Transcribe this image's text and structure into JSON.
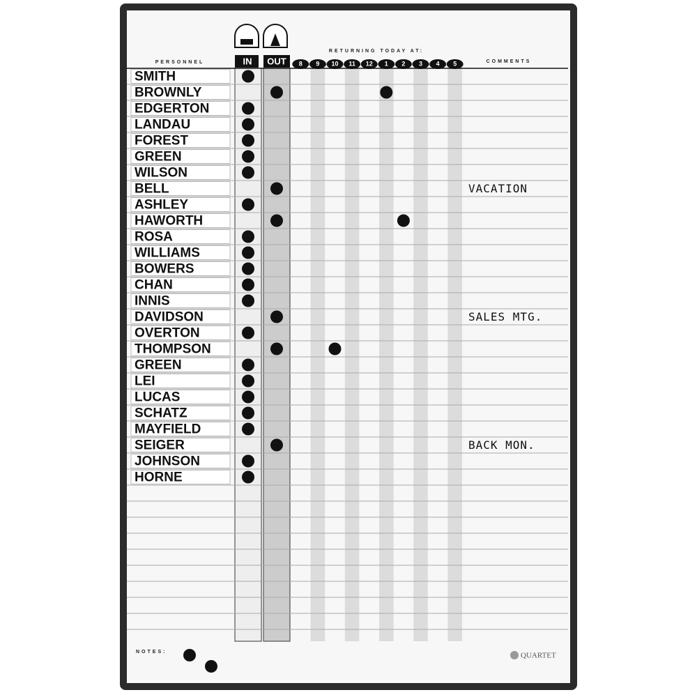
{
  "headers": {
    "personnel": "PERSONNEL",
    "in": "IN",
    "out": "OUT",
    "returning": "RETURNING TODAY AT:",
    "comments": "COMMENTS"
  },
  "times": [
    "8",
    "9",
    "10",
    "11",
    "12",
    "1",
    "2",
    "3",
    "4",
    "5"
  ],
  "rows": [
    {
      "name": "SMITH",
      "status": "in"
    },
    {
      "name": "BROWNLY",
      "status": "out",
      "returning": "1"
    },
    {
      "name": "EDGERTON",
      "status": "in"
    },
    {
      "name": "LANDAU",
      "status": "in"
    },
    {
      "name": "FOREST",
      "status": "in"
    },
    {
      "name": "GREEN",
      "status": "in"
    },
    {
      "name": "WILSON",
      "status": "in"
    },
    {
      "name": "BELL",
      "status": "out",
      "comment": "VACATION"
    },
    {
      "name": "ASHLEY",
      "status": "in"
    },
    {
      "name": "HAWORTH",
      "status": "out",
      "returning": "2"
    },
    {
      "name": "ROSA",
      "status": "in"
    },
    {
      "name": "WILLIAMS",
      "status": "in"
    },
    {
      "name": "BOWERS",
      "status": "in"
    },
    {
      "name": "CHAN",
      "status": "in"
    },
    {
      "name": "INNIS",
      "status": "in"
    },
    {
      "name": "DAVIDSON",
      "status": "out",
      "comment": "SALES MTG."
    },
    {
      "name": "OVERTON",
      "status": "in"
    },
    {
      "name": "THOMPSON",
      "status": "out",
      "returning": "10"
    },
    {
      "name": "GREEN",
      "status": "in"
    },
    {
      "name": "LEI",
      "status": "in"
    },
    {
      "name": "LUCAS",
      "status": "in"
    },
    {
      "name": "SCHATZ",
      "status": "in"
    },
    {
      "name": "MAYFIELD",
      "status": "in"
    },
    {
      "name": "SEIGER",
      "status": "out",
      "comment": "BACK MON."
    },
    {
      "name": "JOHNSON",
      "status": "in"
    },
    {
      "name": "HORNE",
      "status": "in"
    }
  ],
  "notes_label": "NOTES:",
  "brand": "QUARTET"
}
